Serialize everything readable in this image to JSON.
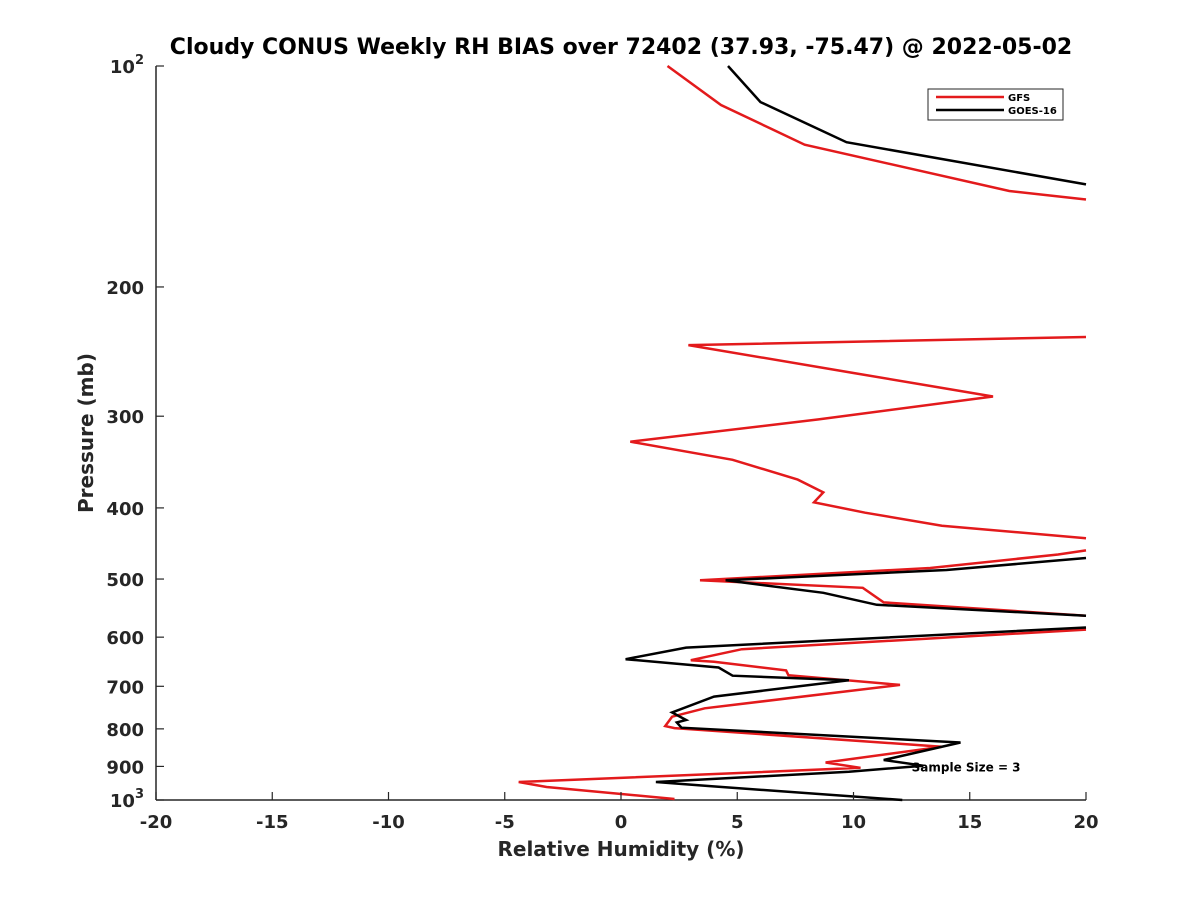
{
  "chart_data": {
    "type": "line",
    "title": "Cloudy CONUS Weekly RH BIAS over 72402 (37.93, -75.47) @ 2022-05-02",
    "xlabel": "Relative Humidity (%)",
    "ylabel": "Pressure (mb)",
    "xlim": [
      -20,
      20
    ],
    "ylim": [
      100,
      1000
    ],
    "y_scale": "log",
    "y_reversed": true,
    "grid": false,
    "legend_position": "top-right",
    "x_ticks": [
      -20,
      -15,
      -10,
      -5,
      0,
      5,
      10,
      15,
      20
    ],
    "x_tick_labels": [
      "-20",
      "-15",
      "-10",
      "-5",
      "0",
      "5",
      "10",
      "15",
      "20"
    ],
    "y_ticks": [
      100,
      200,
      300,
      400,
      500,
      600,
      700,
      800,
      900,
      1000
    ],
    "y_tick_labels": [
      {
        "base": "10",
        "exp": "2"
      },
      {
        "base": "200",
        "exp": ""
      },
      {
        "base": "300",
        "exp": ""
      },
      {
        "base": "400",
        "exp": ""
      },
      {
        "base": "500",
        "exp": ""
      },
      {
        "base": "600",
        "exp": ""
      },
      {
        "base": "700",
        "exp": ""
      },
      {
        "base": "800",
        "exp": ""
      },
      {
        "base": "900",
        "exp": ""
      },
      {
        "base": "10",
        "exp": "3"
      }
    ],
    "annotations": [
      {
        "text": "Sample Size = 3",
        "x": 12.5,
        "y": 900
      }
    ],
    "series": [
      {
        "name": "GFS",
        "color": "#e31a1c",
        "points": [
          [
            2.0,
            100
          ],
          [
            4.3,
            113
          ],
          [
            7.9,
            128
          ],
          [
            16.7,
            148
          ],
          [
            20.0,
            152
          ],
          [
            null,
            null
          ],
          [
            20.0,
            234
          ],
          [
            2.9,
            240
          ],
          [
            10.0,
            262
          ],
          [
            16.0,
            282
          ],
          [
            8.5,
            303
          ],
          [
            0.4,
            325
          ],
          [
            4.8,
            344
          ],
          [
            7.6,
            366
          ],
          [
            8.7,
            381
          ],
          [
            8.3,
            393
          ],
          [
            10.5,
            406
          ],
          [
            13.8,
            423
          ],
          [
            20.0,
            440
          ],
          [
            null,
            null
          ],
          [
            20.0,
            457
          ],
          [
            18.8,
            463
          ],
          [
            13.3,
            483
          ],
          [
            3.4,
            502
          ],
          [
            10.4,
            514
          ],
          [
            11.3,
            538
          ],
          [
            20.0,
            561
          ],
          [
            null,
            null
          ],
          [
            20.0,
            586
          ],
          [
            5.2,
            623
          ],
          [
            3.0,
            645
          ],
          [
            4.0,
            648
          ],
          [
            7.1,
            666
          ],
          [
            7.2,
            676
          ],
          [
            12.0,
            697
          ],
          [
            3.6,
            750
          ],
          [
            2.2,
            770
          ],
          [
            1.9,
            793
          ],
          [
            2.3,
            798
          ],
          [
            13.8,
            846
          ],
          [
            8.8,
            889
          ],
          [
            10.3,
            904
          ],
          [
            4.7,
            920
          ],
          [
            -4.4,
            945
          ],
          [
            -3.2,
            960
          ],
          [
            2.3,
            997
          ]
        ]
      },
      {
        "name": "GOES-16",
        "color": "#000000",
        "points": [
          [
            4.6,
            100
          ],
          [
            6.0,
            112
          ],
          [
            9.7,
            127
          ],
          [
            20.0,
            145
          ],
          [
            null,
            null
          ],
          [
            20.0,
            468
          ],
          [
            14.0,
            486
          ],
          [
            4.5,
            502
          ],
          [
            8.7,
            522
          ],
          [
            11.0,
            542
          ],
          [
            20.0,
            561
          ],
          [
            null,
            null
          ],
          [
            20.0,
            582
          ],
          [
            2.8,
            620
          ],
          [
            0.2,
            643
          ],
          [
            4.2,
            660
          ],
          [
            4.8,
            677
          ],
          [
            9.8,
            687
          ],
          [
            4.0,
            723
          ],
          [
            2.2,
            760
          ],
          [
            2.8,
            778
          ],
          [
            2.4,
            784
          ],
          [
            2.6,
            797
          ],
          [
            14.6,
            835
          ],
          [
            11.3,
            882
          ],
          [
            13.0,
            898
          ],
          [
            9.8,
            915
          ],
          [
            1.5,
            945
          ],
          [
            3.9,
            958
          ],
          [
            12.1,
            1000
          ]
        ]
      }
    ]
  }
}
